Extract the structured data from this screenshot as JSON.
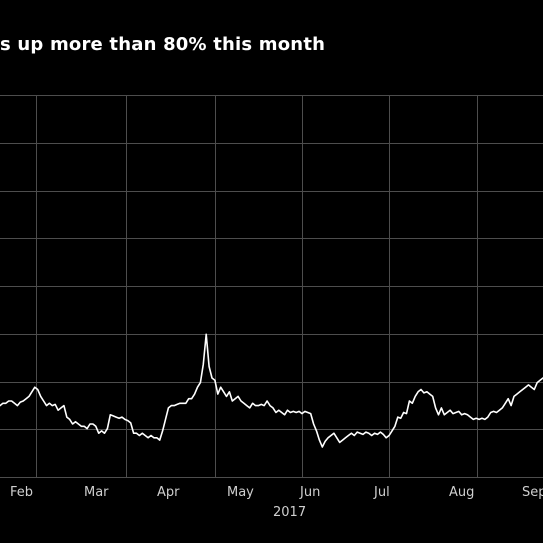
{
  "title": "s up more than 80% this month",
  "chart_data": {
    "type": "line",
    "title": "s up more than 80% this month",
    "xlabel": "",
    "ylabel": "",
    "x_ticks": [
      "Feb",
      "Mar",
      "Apr",
      "May",
      "Jun",
      "Jul",
      "Aug",
      "Sep"
    ],
    "year_label": "2017",
    "grid": true,
    "grid_horizontal_count": 8,
    "series": [
      {
        "values": [
          36,
          38,
          38,
          40,
          40,
          38,
          36,
          39,
          40,
          42,
          44,
          48,
          52,
          50,
          44,
          40,
          36,
          38,
          36,
          37,
          32,
          34,
          36,
          26,
          24,
          20,
          22,
          20,
          18,
          18,
          16,
          20,
          20,
          18,
          12,
          14,
          12,
          16,
          28,
          27,
          26,
          25,
          26,
          24,
          23,
          21,
          12,
          12,
          10,
          12,
          10,
          8,
          10,
          8,
          8,
          6,
          14,
          24,
          34,
          36,
          36,
          37,
          38,
          38,
          38,
          42,
          42,
          46,
          52,
          56,
          72,
          98,
          70,
          60,
          58,
          46,
          52,
          48,
          44,
          48,
          40,
          42,
          44,
          40,
          38,
          36,
          34,
          38,
          36,
          36,
          37,
          36,
          40,
          36,
          34,
          30,
          32,
          30,
          28,
          32,
          30,
          31,
          30,
          31,
          29,
          31,
          30,
          29,
          20,
          14,
          6,
          0,
          5,
          8,
          10,
          12,
          8,
          4,
          6,
          8,
          10,
          12,
          10,
          13,
          12,
          11,
          13,
          12,
          10,
          12,
          11,
          13,
          11,
          8,
          10,
          14,
          18,
          26,
          25,
          30,
          29,
          40,
          38,
          44,
          48,
          50,
          47,
          48,
          46,
          44,
          34,
          28,
          34,
          28,
          30,
          32,
          29,
          30,
          31,
          28,
          29,
          28,
          26,
          24,
          25,
          24,
          25,
          24,
          26,
          30,
          31,
          30,
          32,
          34,
          38,
          42,
          36,
          44,
          46,
          48,
          50,
          52,
          54,
          52,
          50,
          56,
          58,
          60
        ]
      }
    ],
    "ylim": [
      0,
      100
    ],
    "colors": {
      "background": "#000000",
      "line": "#ffffff",
      "grid": "#4d4d4d",
      "tick_text": "#cfcfcf",
      "title_text": "#ffffff"
    }
  }
}
